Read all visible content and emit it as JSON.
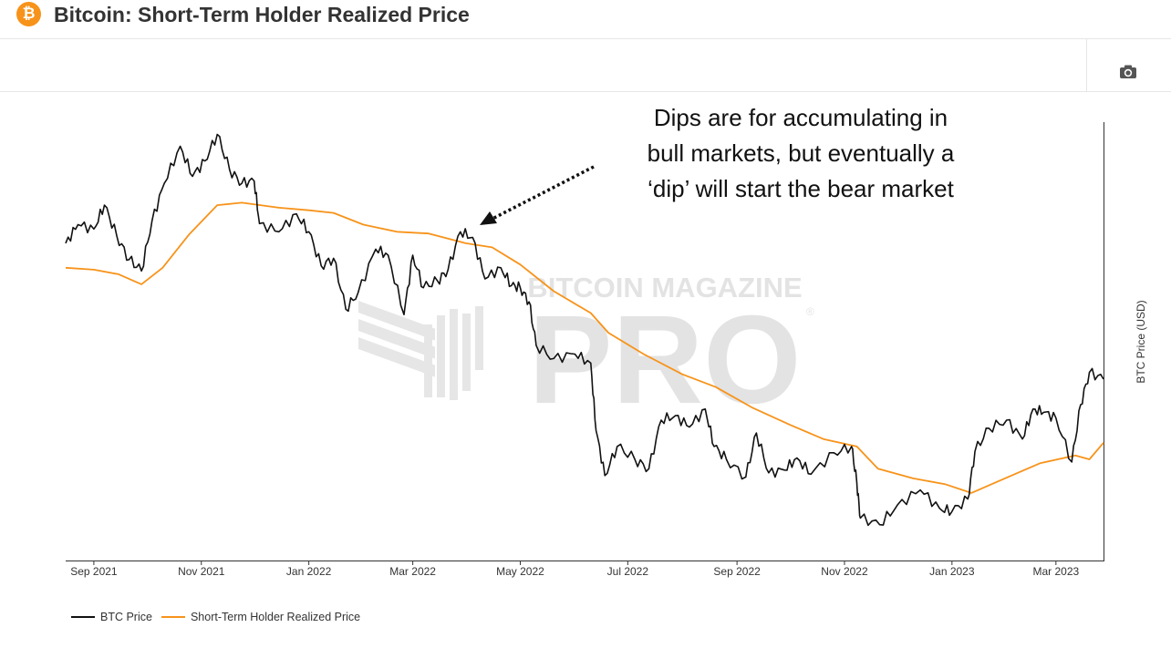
{
  "header": {
    "title": "Bitcoin: Short-Term Holder Realized Price",
    "logo_symbol": "₿",
    "logo_color": "#f7931a"
  },
  "toolbar": {
    "camera_icon": "camera-icon"
  },
  "watermark": {
    "line1": "BITCOIN MAGAZINE",
    "line2": "PRO",
    "registered": "®"
  },
  "annotation": {
    "lines": [
      "Dips are for accumulating in",
      "bull markets, but eventually a",
      "‘dip’ will start the bear market"
    ]
  },
  "chart_data": {
    "type": "line",
    "title": "Bitcoin: Short-Term Holder Realized Price",
    "xlabel": "",
    "ylabel": "BTC Price (USD)",
    "x_tick_labels": [
      "Sep 2021",
      "Nov 2021",
      "Jan 2022",
      "Mar 2022",
      "May 2022",
      "Jul 2022",
      "Sep 2022",
      "Nov 2022",
      "Jan 2023",
      "Mar 2023"
    ],
    "x_range": [
      "2021-08-16",
      "2023-03-28"
    ],
    "y_scale": "log",
    "ylim": [
      14000,
      75000
    ],
    "grid": false,
    "legend_position": "bottom-left",
    "series": [
      {
        "name": "BTC Price",
        "color": "#111111",
        "points": [
          [
            "2021-08-16",
            45500
          ],
          [
            "2021-08-23",
            48800
          ],
          [
            "2021-09-01",
            48000
          ],
          [
            "2021-09-07",
            52500
          ],
          [
            "2021-09-14",
            46800
          ],
          [
            "2021-09-21",
            42800
          ],
          [
            "2021-09-28",
            41000
          ],
          [
            "2021-10-04",
            49500
          ],
          [
            "2021-10-11",
            57000
          ],
          [
            "2021-10-20",
            65500
          ],
          [
            "2021-10-27",
            58500
          ],
          [
            "2021-11-03",
            62000
          ],
          [
            "2021-11-10",
            68500
          ],
          [
            "2021-11-17",
            60000
          ],
          [
            "2021-11-24",
            57000
          ],
          [
            "2021-12-01",
            57500
          ],
          [
            "2021-12-04",
            49000
          ],
          [
            "2021-12-15",
            47500
          ],
          [
            "2021-12-25",
            50800
          ],
          [
            "2022-01-01",
            47500
          ],
          [
            "2022-01-08",
            41800
          ],
          [
            "2022-01-15",
            43000
          ],
          [
            "2022-01-22",
            35500
          ],
          [
            "2022-01-29",
            37800
          ],
          [
            "2022-02-08",
            44500
          ],
          [
            "2022-02-15",
            43500
          ],
          [
            "2022-02-24",
            34800
          ],
          [
            "2022-03-01",
            43500
          ],
          [
            "2022-03-07",
            38500
          ],
          [
            "2022-03-15",
            39500
          ],
          [
            "2022-03-21",
            41200
          ],
          [
            "2022-03-28",
            47500
          ],
          [
            "2022-04-04",
            46500
          ],
          [
            "2022-04-11",
            39800
          ],
          [
            "2022-04-20",
            41500
          ],
          [
            "2022-04-26",
            38800
          ],
          [
            "2022-05-01",
            38500
          ],
          [
            "2022-05-06",
            36500
          ],
          [
            "2022-05-10",
            31000
          ],
          [
            "2022-05-20",
            29500
          ],
          [
            "2022-06-01",
            30000
          ],
          [
            "2022-06-10",
            29000
          ],
          [
            "2022-06-13",
            22500
          ],
          [
            "2022-06-18",
            19000
          ],
          [
            "2022-06-25",
            21200
          ],
          [
            "2022-07-05",
            20200
          ],
          [
            "2022-07-13",
            19500
          ],
          [
            "2022-07-20",
            23400
          ],
          [
            "2022-07-28",
            23800
          ],
          [
            "2022-08-05",
            22800
          ],
          [
            "2022-08-14",
            24400
          ],
          [
            "2022-08-19",
            21200
          ],
          [
            "2022-08-26",
            20200
          ],
          [
            "2022-09-06",
            18900
          ],
          [
            "2022-09-12",
            22300
          ],
          [
            "2022-09-19",
            19200
          ],
          [
            "2022-09-28",
            19400
          ],
          [
            "2022-10-05",
            20300
          ],
          [
            "2022-10-13",
            19100
          ],
          [
            "2022-10-26",
            20700
          ],
          [
            "2022-11-05",
            21200
          ],
          [
            "2022-11-08",
            18500
          ],
          [
            "2022-11-10",
            16200
          ],
          [
            "2022-11-21",
            15800
          ],
          [
            "2022-12-01",
            17000
          ],
          [
            "2022-12-14",
            18000
          ],
          [
            "2022-12-25",
            16800
          ],
          [
            "2023-01-01",
            16600
          ],
          [
            "2023-01-10",
            17400
          ],
          [
            "2023-01-14",
            20800
          ],
          [
            "2023-01-22",
            22700
          ],
          [
            "2023-02-01",
            23400
          ],
          [
            "2023-02-10",
            21800
          ],
          [
            "2023-02-16",
            24400
          ],
          [
            "2023-02-22",
            24100
          ],
          [
            "2023-03-01",
            23600
          ],
          [
            "2023-03-10",
            20000
          ],
          [
            "2023-03-15",
            24800
          ],
          [
            "2023-03-20",
            28000
          ],
          [
            "2023-03-28",
            27300
          ]
        ]
      },
      {
        "name": "Short-Term Holder Realized Price",
        "color": "#f7931a",
        "points": [
          [
            "2021-08-16",
            41500
          ],
          [
            "2021-09-01",
            41200
          ],
          [
            "2021-09-15",
            40500
          ],
          [
            "2021-09-28",
            39000
          ],
          [
            "2021-10-10",
            41500
          ],
          [
            "2021-10-25",
            47000
          ],
          [
            "2021-11-10",
            52500
          ],
          [
            "2021-11-24",
            53000
          ],
          [
            "2021-12-15",
            52000
          ],
          [
            "2022-01-01",
            51500
          ],
          [
            "2022-01-15",
            51000
          ],
          [
            "2022-02-01",
            48800
          ],
          [
            "2022-02-20",
            47500
          ],
          [
            "2022-03-10",
            47200
          ],
          [
            "2022-03-31",
            45500
          ],
          [
            "2022-04-15",
            44800
          ],
          [
            "2022-05-01",
            42000
          ],
          [
            "2022-05-20",
            38000
          ],
          [
            "2022-06-10",
            35000
          ],
          [
            "2022-06-20",
            32500
          ],
          [
            "2022-07-10",
            30000
          ],
          [
            "2022-08-01",
            27800
          ],
          [
            "2022-08-20",
            26500
          ],
          [
            "2022-09-10",
            24500
          ],
          [
            "2022-10-01",
            23000
          ],
          [
            "2022-10-20",
            21800
          ],
          [
            "2022-11-08",
            21200
          ],
          [
            "2022-11-20",
            19500
          ],
          [
            "2022-12-10",
            18800
          ],
          [
            "2022-12-28",
            18400
          ],
          [
            "2023-01-12",
            17800
          ],
          [
            "2023-01-31",
            18800
          ],
          [
            "2023-02-20",
            19900
          ],
          [
            "2023-03-12",
            20500
          ],
          [
            "2023-03-20",
            20200
          ],
          [
            "2023-03-28",
            21500
          ]
        ]
      }
    ]
  }
}
